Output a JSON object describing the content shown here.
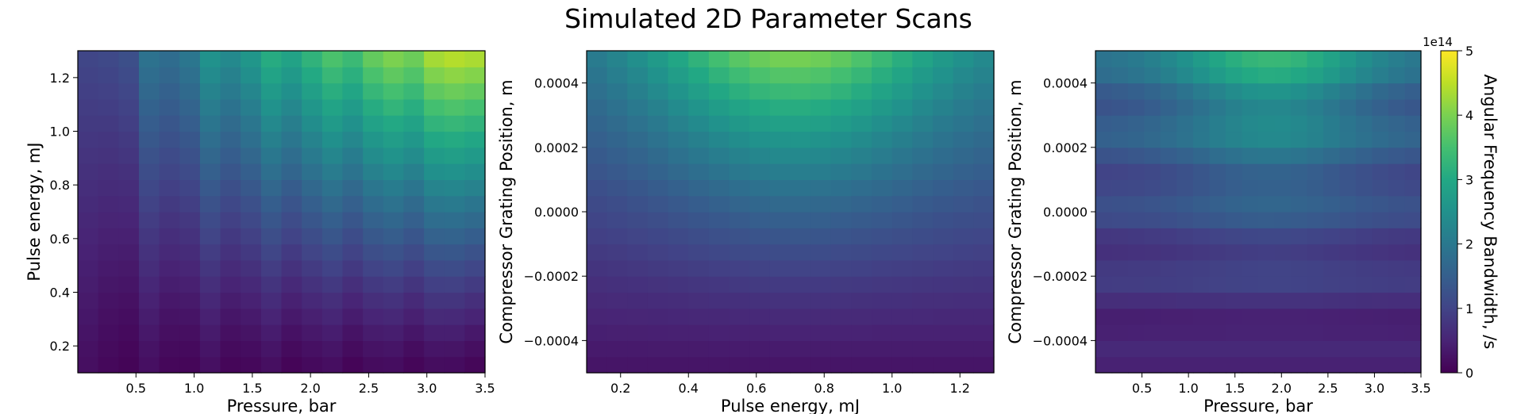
{
  "figure_title": "Simulated 2D Parameter Scans",
  "colorbar": {
    "label": "Angular Frequency Bandwidth, /s",
    "multiplier": "1e14",
    "ticks": [
      0,
      1,
      2,
      3,
      4,
      5
    ],
    "range": [
      0,
      5
    ],
    "colormap": "viridis"
  },
  "chart_data": [
    {
      "type": "heatmap",
      "title": "",
      "xlabel": "Pressure, bar",
      "ylabel": "Pulse energy, mJ",
      "xlim": [
        0.0,
        3.5
      ],
      "ylim": [
        0.1,
        1.3
      ],
      "x_ticks": [
        "0.5",
        "1.0",
        "1.5",
        "2.0",
        "2.5",
        "3.0",
        "3.5"
      ],
      "x_tick_values": [
        0.5,
        1.0,
        1.5,
        2.0,
        2.5,
        3.0,
        3.5
      ],
      "y_ticks": [
        "0.2",
        "0.4",
        "0.6",
        "0.8",
        "1.0",
        "1.2"
      ],
      "y_tick_values": [
        0.2,
        0.4,
        0.6,
        0.8,
        1.0,
        1.2
      ],
      "grid_cols": 20,
      "grid_rows": 20,
      "value_unit": "1e14 /s",
      "model": "pressure-energy"
    },
    {
      "type": "heatmap",
      "title": "",
      "xlabel": "Pulse energy, mJ",
      "ylabel": "Compressor Grating Position, m",
      "xlim": [
        0.1,
        1.3
      ],
      "ylim": [
        -0.0005,
        0.0005
      ],
      "x_ticks": [
        "0.2",
        "0.4",
        "0.6",
        "0.8",
        "1.0",
        "1.2"
      ],
      "x_tick_values": [
        0.2,
        0.4,
        0.6,
        0.8,
        1.0,
        1.2
      ],
      "y_ticks": [
        "0.0004",
        "0.0002",
        "0.0000",
        "−0.0002",
        "−0.0004"
      ],
      "y_tick_values": [
        0.0004,
        0.0002,
        0.0,
        -0.0002,
        -0.0004
      ],
      "grid_cols": 20,
      "grid_rows": 20,
      "value_unit": "1e14 /s",
      "model": "energy-grating"
    },
    {
      "type": "heatmap",
      "title": "",
      "xlabel": "Pressure, bar",
      "ylabel": "Compressor Grating Position, m",
      "xlim": [
        0.0,
        3.5
      ],
      "ylim": [
        -0.0005,
        0.0005
      ],
      "x_ticks": [
        "0.5",
        "1.0",
        "1.5",
        "2.0",
        "2.5",
        "3.0",
        "3.5"
      ],
      "x_tick_values": [
        0.5,
        1.0,
        1.5,
        2.0,
        2.5,
        3.0,
        3.5
      ],
      "y_ticks": [
        "0.0004",
        "0.0002",
        "0.0000",
        "−0.0002",
        "−0.0004"
      ],
      "y_tick_values": [
        0.0004,
        0.0002,
        0.0,
        -0.0002,
        -0.0004
      ],
      "grid_cols": 20,
      "grid_rows": 20,
      "value_unit": "1e14 /s",
      "model": "pressure-grating"
    }
  ]
}
